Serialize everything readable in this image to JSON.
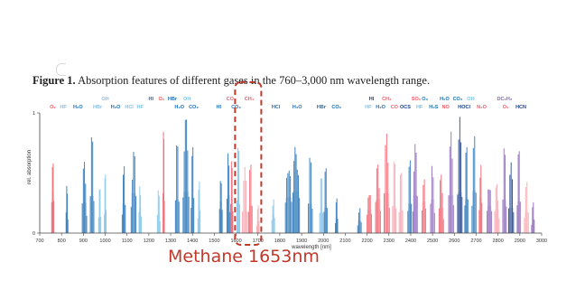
{
  "figure": {
    "label": "Figure 1.",
    "title": "Absorption features of different gases in the 760–3,000 nm wavelength range."
  },
  "caption": "Methane 1653nm",
  "colors": {
    "blue": "#1f6fb5",
    "dark_blue": "#1b3f8a",
    "light_blue": "#7ec3e8",
    "red": "#f05a68",
    "pink": "#f7a3ad",
    "purple": "#8a63b8",
    "highlight": "#c0392b"
  },
  "chart_data": {
    "type": "area",
    "xlabel": "wavelength [nm]",
    "ylabel": "rel. absorption",
    "xlim": [
      700,
      3000
    ],
    "ylim": [
      0,
      1
    ],
    "x_ticks": [
      700,
      800,
      900,
      1000,
      1100,
      1200,
      1300,
      1400,
      1500,
      1600,
      1700,
      1800,
      1900,
      2000,
      2100,
      2200,
      2300,
      2400,
      2500,
      2600,
      2700,
      2800,
      2900,
      3000
    ],
    "x_tick_labels": [
      "700",
      "800",
      "900",
      "1000",
      "1100",
      "1200",
      "1300",
      "1400",
      "1500",
      "1600",
      "1700",
      "1800",
      "1900",
      "2000",
      "2100",
      "2200",
      "2300",
      "2400",
      "2500",
      "2600",
      "2700",
      "2800",
      "2900",
      "3000"
    ],
    "y_ticks": [
      0,
      1
    ],
    "y_tick_labels": [
      "0",
      "1"
    ],
    "highlight_band": [
      1595,
      1715
    ],
    "gas_labels": [
      {
        "text": "O₂",
        "x": 760,
        "row": 2,
        "color": "#f05a68"
      },
      {
        "text": "HF",
        "x": 808,
        "row": 2,
        "color": "#7ec3e8"
      },
      {
        "text": "H₂O",
        "x": 875,
        "row": 2,
        "color": "#1f6fb5"
      },
      {
        "text": "HBr",
        "x": 965,
        "row": 2,
        "color": "#7ec3e8"
      },
      {
        "text": "OH",
        "x": 1000,
        "row": 1,
        "color": "#7ec3e8"
      },
      {
        "text": "H₂O",
        "x": 1048,
        "row": 2,
        "color": "#1f6fb5"
      },
      {
        "text": "HCl",
        "x": 1110,
        "row": 2,
        "color": "#7ec3e8"
      },
      {
        "text": "HF",
        "x": 1160,
        "row": 2,
        "color": "#7ec3e8"
      },
      {
        "text": "HI",
        "x": 1210,
        "row": 1,
        "color": "#1f6fb5"
      },
      {
        "text": "O₂",
        "x": 1258,
        "row": 1,
        "color": "#f05a68"
      },
      {
        "text": "HBr",
        "x": 1308,
        "row": 1,
        "color": "#1f6fb5"
      },
      {
        "text": "OH",
        "x": 1375,
        "row": 1,
        "color": "#7ec3e8"
      },
      {
        "text": "H₂O",
        "x": 1340,
        "row": 2,
        "color": "#1f6fb5"
      },
      {
        "text": "CO₂",
        "x": 1405,
        "row": 2,
        "color": "#1f6fb5"
      },
      {
        "text": "HI",
        "x": 1520,
        "row": 2,
        "color": "#1f6fb5"
      },
      {
        "text": "CO",
        "x": 1572,
        "row": 1,
        "color": "#f05a68"
      },
      {
        "text": "CO₂",
        "x": 1600,
        "row": 2,
        "color": "#1f6fb5"
      },
      {
        "text": "CH₄",
        "x": 1660,
        "row": 1,
        "color": "#f05a68"
      },
      {
        "text": "HCl",
        "x": 1782,
        "row": 2,
        "color": "#1f6fb5"
      },
      {
        "text": "H₂O",
        "x": 1880,
        "row": 2,
        "color": "#1f6fb5"
      },
      {
        "text": "HBr",
        "x": 1990,
        "row": 2,
        "color": "#1f6fb5"
      },
      {
        "text": "CO₂",
        "x": 2060,
        "row": 2,
        "color": "#1f6fb5"
      },
      {
        "text": "HI",
        "x": 2220,
        "row": 1,
        "color": "#1b3f8a"
      },
      {
        "text": "CH₄",
        "x": 2290,
        "row": 1,
        "color": "#f05a68"
      },
      {
        "text": "HF",
        "x": 2205,
        "row": 2,
        "color": "#7ec3e8"
      },
      {
        "text": "H₂O",
        "x": 2262,
        "row": 2,
        "color": "#1f6fb5"
      },
      {
        "text": "CO",
        "x": 2325,
        "row": 2,
        "color": "#f05a68"
      },
      {
        "text": "OCS",
        "x": 2375,
        "row": 2,
        "color": "#1b3f8a"
      },
      {
        "text": "SO₂",
        "x": 2425,
        "row": 1,
        "color": "#f05a68"
      },
      {
        "text": "O₃",
        "x": 2465,
        "row": 1,
        "color": "#1f6fb5"
      },
      {
        "text": "HF",
        "x": 2440,
        "row": 2,
        "color": "#7ec3e8"
      },
      {
        "text": "H₂S",
        "x": 2505,
        "row": 2,
        "color": "#1f6fb5"
      },
      {
        "text": "NO",
        "x": 2560,
        "row": 2,
        "color": "#f05a68"
      },
      {
        "text": "H₂O",
        "x": 2555,
        "row": 1,
        "color": "#1f6fb5"
      },
      {
        "text": "CO₂",
        "x": 2615,
        "row": 1,
        "color": "#1f6fb5"
      },
      {
        "text": "OH",
        "x": 2675,
        "row": 1,
        "color": "#7ec3e8"
      },
      {
        "text": "HOCl",
        "x": 2645,
        "row": 2,
        "color": "#1b3f8a"
      },
      {
        "text": "N₂O",
        "x": 2725,
        "row": 2,
        "color": "#f05a68"
      },
      {
        "text": "DC₂H₂",
        "x": 2830,
        "row": 1,
        "color": "#8a63b8"
      },
      {
        "text": "O₂",
        "x": 2835,
        "row": 2,
        "color": "#f05a68"
      },
      {
        "text": "HCN",
        "x": 2905,
        "row": 2,
        "color": "#1b3f8a"
      }
    ],
    "bands": [
      {
        "x": 760,
        "width": 10,
        "height": 1.0,
        "color": "#f05a68"
      },
      {
        "x": 825,
        "width": 8,
        "height": 0.55,
        "color": "#1f6fb5"
      },
      {
        "x": 905,
        "width": 20,
        "height": 0.72,
        "color": "#1f6fb5"
      },
      {
        "x": 940,
        "width": 16,
        "height": 0.88,
        "color": "#1f6fb5"
      },
      {
        "x": 975,
        "width": 10,
        "height": 0.4,
        "color": "#7ec3e8"
      },
      {
        "x": 1000,
        "width": 8,
        "height": 0.55,
        "color": "#7ec3e8"
      },
      {
        "x": 1085,
        "width": 14,
        "height": 0.7,
        "color": "#1f6fb5"
      },
      {
        "x": 1130,
        "width": 22,
        "height": 0.95,
        "color": "#1f6fb5"
      },
      {
        "x": 1160,
        "width": 10,
        "height": 0.6,
        "color": "#7ec3e8"
      },
      {
        "x": 1245,
        "width": 12,
        "height": 0.45,
        "color": "#7ec3e8"
      },
      {
        "x": 1268,
        "width": 6,
        "height": 0.95,
        "color": "#f05a68"
      },
      {
        "x": 1330,
        "width": 16,
        "height": 0.8,
        "color": "#1f6fb5"
      },
      {
        "x": 1370,
        "width": 26,
        "height": 0.98,
        "color": "#1f6fb5"
      },
      {
        "x": 1400,
        "width": 12,
        "height": 0.85,
        "color": "#1f6fb5"
      },
      {
        "x": 1430,
        "width": 10,
        "height": 0.6,
        "color": "#7ec3e8"
      },
      {
        "x": 1530,
        "width": 12,
        "height": 0.75,
        "color": "#1f6fb5"
      },
      {
        "x": 1565,
        "width": 14,
        "height": 0.9,
        "color": "#1f6fb5"
      },
      {
        "x": 1580,
        "width": 10,
        "height": 0.7,
        "color": "#f05a68"
      },
      {
        "x": 1610,
        "width": 12,
        "height": 0.78,
        "color": "#7ec3e8"
      },
      {
        "x": 1640,
        "width": 22,
        "height": 0.55,
        "color": "#f7a3ad"
      },
      {
        "x": 1665,
        "width": 16,
        "height": 0.65,
        "color": "#f05a68"
      },
      {
        "x": 1700,
        "width": 10,
        "height": 0.3,
        "color": "#f7a3ad"
      },
      {
        "x": 1770,
        "width": 12,
        "height": 0.45,
        "color": "#7ec3e8"
      },
      {
        "x": 1840,
        "width": 28,
        "height": 0.85,
        "color": "#1f6fb5"
      },
      {
        "x": 1875,
        "width": 30,
        "height": 1.0,
        "color": "#1f6fb5"
      },
      {
        "x": 1940,
        "width": 18,
        "height": 0.7,
        "color": "#1f6fb5"
      },
      {
        "x": 1990,
        "width": 14,
        "height": 0.5,
        "color": "#7ec3e8"
      },
      {
        "x": 2010,
        "width": 14,
        "height": 0.6,
        "color": "#1f6fb5"
      },
      {
        "x": 2060,
        "width": 10,
        "height": 0.35,
        "color": "#1f6fb5"
      },
      {
        "x": 2165,
        "width": 16,
        "height": 0.3,
        "color": "#1f6fb5"
      },
      {
        "x": 2210,
        "width": 20,
        "height": 0.55,
        "color": "#f05a68"
      },
      {
        "x": 2250,
        "width": 22,
        "height": 0.8,
        "color": "#f05a68"
      },
      {
        "x": 2290,
        "width": 24,
        "height": 0.95,
        "color": "#f05a68"
      },
      {
        "x": 2325,
        "width": 16,
        "height": 0.65,
        "color": "#f7a3ad"
      },
      {
        "x": 2355,
        "width": 16,
        "height": 0.55,
        "color": "#f7a3ad"
      },
      {
        "x": 2395,
        "width": 16,
        "height": 0.7,
        "color": "#1f6fb5"
      },
      {
        "x": 2420,
        "width": 20,
        "height": 0.9,
        "color": "#8a63b8"
      },
      {
        "x": 2460,
        "width": 16,
        "height": 0.75,
        "color": "#f05a68"
      },
      {
        "x": 2500,
        "width": 18,
        "height": 0.8,
        "color": "#8a63b8"
      },
      {
        "x": 2540,
        "width": 20,
        "height": 0.6,
        "color": "#f05a68"
      },
      {
        "x": 2585,
        "width": 22,
        "height": 0.9,
        "color": "#8a63b8"
      },
      {
        "x": 2625,
        "width": 20,
        "height": 0.97,
        "color": "#1b3f8a"
      },
      {
        "x": 2655,
        "width": 14,
        "height": 0.8,
        "color": "#1f6fb5"
      },
      {
        "x": 2690,
        "width": 18,
        "height": 1.0,
        "color": "#1f6fb5"
      },
      {
        "x": 2720,
        "width": 12,
        "height": 0.85,
        "color": "#f05a68"
      },
      {
        "x": 2760,
        "width": 20,
        "height": 0.65,
        "color": "#8a63b8"
      },
      {
        "x": 2795,
        "width": 20,
        "height": 0.55,
        "color": "#f7a3ad"
      },
      {
        "x": 2830,
        "width": 16,
        "height": 0.8,
        "color": "#8a63b8"
      },
      {
        "x": 2860,
        "width": 22,
        "height": 0.6,
        "color": "#1b3f8a"
      },
      {
        "x": 2895,
        "width": 14,
        "height": 0.75,
        "color": "#8a63b8"
      },
      {
        "x": 2930,
        "width": 18,
        "height": 0.5,
        "color": "#f7a3ad"
      },
      {
        "x": 2960,
        "width": 12,
        "height": 0.35,
        "color": "#8a63b8"
      }
    ]
  }
}
